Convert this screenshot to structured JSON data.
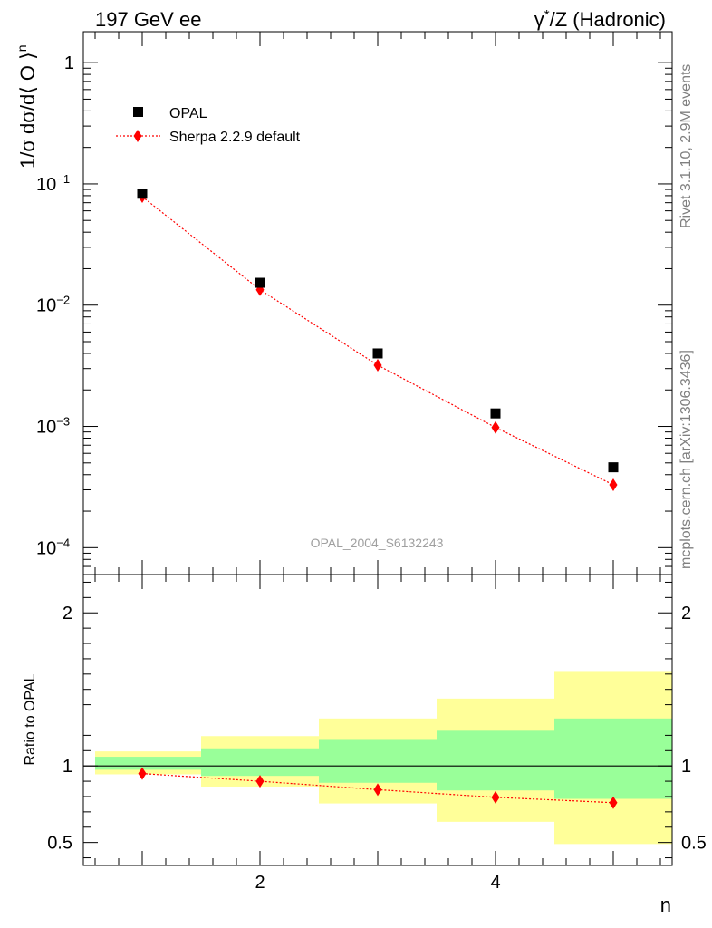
{
  "header": {
    "left": "197 GeV ee",
    "right_sup": "*",
    "right_pre": "γ",
    "right_post": "/Z (Hadronic)"
  },
  "side_text": {
    "rivet": "Rivet 3.1.10,  2.9M events",
    "mcplots": "mcplots.cern.ch [arXiv:1306.3436]"
  },
  "watermark": "OPAL_2004_S6132243",
  "chart_data": [
    {
      "type": "scatter",
      "ylabel": "1/σ dσ/d⟨ O ⟩",
      "ylabel_sup": "n",
      "yscale": "log",
      "xlim": [
        0.5,
        5.5
      ],
      "ylim": [
        6e-05,
        1.8
      ],
      "yticks": [
        {
          "value": 1,
          "label": "1",
          "sup": ""
        },
        {
          "value": 0.1,
          "label": "10",
          "sup": "−1"
        },
        {
          "value": 0.01,
          "label": "10",
          "sup": "−2"
        },
        {
          "value": 0.001,
          "label": "10",
          "sup": "−3"
        },
        {
          "value": 0.0001,
          "label": "10",
          "sup": "−4"
        }
      ],
      "legend": {
        "placement": "top-left"
      },
      "series": [
        {
          "name": "OPAL",
          "marker": "square",
          "color": "#000000",
          "x": [
            1,
            2,
            3,
            4,
            5
          ],
          "y": [
            0.083,
            0.0153,
            0.004,
            0.00128,
            0.00046
          ]
        },
        {
          "name": "Sherpa 2.2.9 default",
          "marker": "diamond",
          "color": "#ff0000",
          "line": "dotted",
          "x": [
            1,
            2,
            3,
            4,
            5
          ],
          "y": [
            0.0785,
            0.0134,
            0.0032,
            0.00098,
            0.00033
          ]
        }
      ]
    },
    {
      "type": "line",
      "ylabel": "Ratio to OPAL",
      "xlabel": "n",
      "xlim": [
        0.5,
        5.5
      ],
      "ylim": [
        0.35,
        2.25
      ],
      "xticks": [
        {
          "value": 2,
          "label": "2"
        },
        {
          "value": 4,
          "label": "4"
        }
      ],
      "yticks": [
        {
          "value": 0.5,
          "label": "0.5"
        },
        {
          "value": 1,
          "label": "1"
        },
        {
          "value": 2,
          "label": "2"
        }
      ],
      "reference_line": 1,
      "bands": [
        {
          "x0": 0.6,
          "x1": 1.5,
          "green": [
            0.975,
            1.06
          ],
          "yellow": [
            0.945,
            1.095
          ]
        },
        {
          "x0": 1.5,
          "x1": 2.5,
          "green": [
            0.935,
            1.115
          ],
          "yellow": [
            0.865,
            1.195
          ]
        },
        {
          "x0": 2.5,
          "x1": 3.5,
          "green": [
            0.89,
            1.17
          ],
          "yellow": [
            0.755,
            1.31
          ]
        },
        {
          "x0": 3.5,
          "x1": 4.5,
          "green": [
            0.84,
            1.23
          ],
          "yellow": [
            0.635,
            1.44
          ]
        },
        {
          "x0": 4.5,
          "x1": 5.5,
          "green": [
            0.785,
            1.31
          ],
          "yellow": [
            0.49,
            1.62
          ]
        }
      ],
      "series": [
        {
          "name": "Sherpa 2.2.9 default",
          "marker": "diamond",
          "color": "#ff0000",
          "line": "dotted",
          "x": [
            1,
            2,
            3,
            4,
            5
          ],
          "y": [
            0.95,
            0.9,
            0.845,
            0.795,
            0.76
          ]
        }
      ]
    }
  ],
  "colors": {
    "green_band": "#99ff99",
    "yellow_band": "#ffff99",
    "mc": "#ff0000",
    "data": "#000000"
  }
}
